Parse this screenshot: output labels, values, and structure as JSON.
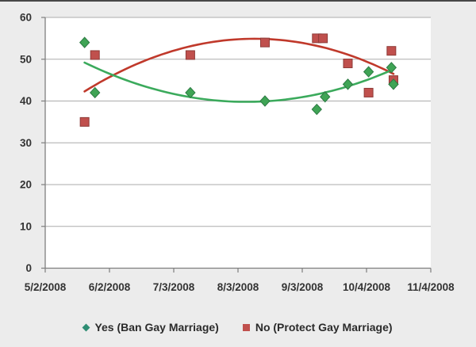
{
  "chart_data": {
    "type": "scatter",
    "title": "",
    "x_range": [
      "5/2/2008",
      "11/4/2008"
    ],
    "x_axis": {
      "tick_labels": [
        "5/2/2008",
        "6/2/2008",
        "7/3/2008",
        "8/3/2008",
        "9/3/2008",
        "10/4/2008",
        "11/4/2008"
      ]
    },
    "y_axis": {
      "min": 0,
      "max": 60,
      "ticks": [
        0,
        10,
        20,
        30,
        40,
        50,
        60
      ]
    },
    "grid": true,
    "legend_position": "bottom",
    "series": [
      {
        "name": "Yes (Ban Gay Marriage)",
        "marker": "diamond",
        "color": "#3FA455",
        "stroke": "#2C7A43",
        "legend_color": "#2E8D73",
        "points": [
          [
            "5/21/2008",
            54
          ],
          [
            "5/26/2008",
            42
          ],
          [
            "7/11/2008",
            42
          ],
          [
            "8/16/2008",
            40
          ],
          [
            "9/10/2008",
            38
          ],
          [
            "9/14/2008",
            41
          ],
          [
            "9/25/2008",
            44
          ],
          [
            "10/5/2008",
            47
          ],
          [
            "10/16/2008",
            48
          ],
          [
            "10/17/2008",
            44
          ]
        ]
      },
      {
        "name": "No (Protect Gay Marriage)",
        "marker": "square",
        "color": "#C0504D",
        "stroke": "#8E3B38",
        "legend_color": "#C0504D",
        "points": [
          [
            "5/21/2008",
            35
          ],
          [
            "5/26/2008",
            51
          ],
          [
            "7/11/2008",
            51
          ],
          [
            "8/16/2008",
            54
          ],
          [
            "9/10/2008",
            55
          ],
          [
            "9/13/2008",
            55
          ],
          [
            "9/25/2008",
            49
          ],
          [
            "10/5/2008",
            42
          ],
          [
            "10/16/2008",
            52
          ],
          [
            "10/17/2008",
            45
          ]
        ]
      }
    ],
    "trendlines": [
      {
        "series": "No (Protect Gay Marriage)",
        "type": "polynomial",
        "color": "#C0392B",
        "start": [
          "5/21/2008",
          42.3
        ],
        "vertex": [
          "8/11/2008",
          54.9
        ],
        "end": [
          "10/17/2008",
          47.0
        ]
      },
      {
        "series": "Yes (Ban Gay Marriage)",
        "type": "polynomial",
        "color": "#3BAA5C",
        "start": [
          "5/21/2008",
          49.2
        ],
        "vertex": [
          "8/7/2008",
          39.8
        ],
        "end": [
          "10/17/2008",
          47.6
        ]
      }
    ]
  },
  "colors": {
    "background": "#ECECEC",
    "plot_background": "#FFFFFF",
    "gridline": "#ABABAB",
    "axis": "#7F7F7F",
    "label": "#333333",
    "top_border": "#474747"
  }
}
